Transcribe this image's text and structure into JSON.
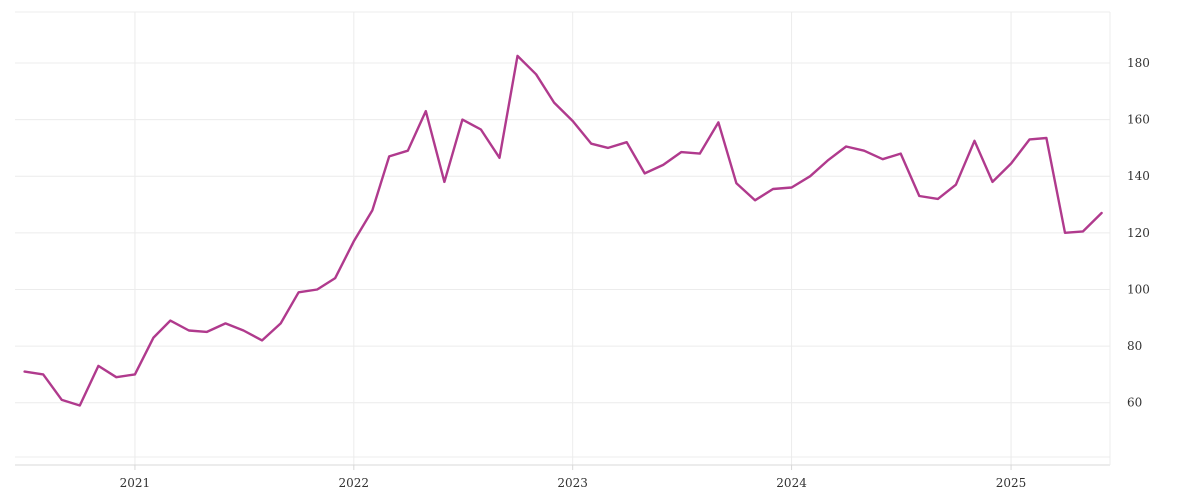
{
  "colors": {
    "series": "#b03a8d",
    "grid": "#ececec",
    "text": "#333333"
  },
  "chart_data": {
    "type": "line",
    "title": "",
    "xlabel": "",
    "ylabel": "",
    "grid": true,
    "y_axis_side": "right",
    "ylim": [
      38,
      198
    ],
    "xlim": [
      "2020-06-15",
      "2025-06-15"
    ],
    "y_ticks": [
      60,
      80,
      100,
      120,
      140,
      160,
      180
    ],
    "x_ticks": [
      "2021-01-01",
      "2022-01-01",
      "2023-01-01",
      "2024-01-01",
      "2025-01-01"
    ],
    "x_tick_labels": [
      "2021",
      "2022",
      "2023",
      "2024",
      "2025"
    ],
    "series": [
      {
        "x": [
          "2020-07-01",
          "2020-08-01",
          "2020-09-01",
          "2020-10-01",
          "2020-11-01",
          "2020-12-01",
          "2021-01-01",
          "2021-02-01",
          "2021-03-01",
          "2021-04-01",
          "2021-05-01",
          "2021-06-01",
          "2021-07-01",
          "2021-08-01",
          "2021-09-01",
          "2021-10-01",
          "2021-11-01",
          "2021-12-01",
          "2022-01-01",
          "2022-02-01",
          "2022-03-01",
          "2022-04-01",
          "2022-05-01",
          "2022-06-01",
          "2022-07-01",
          "2022-08-01",
          "2022-09-01",
          "2022-10-01",
          "2022-11-01",
          "2022-12-01",
          "2023-01-01",
          "2023-02-01",
          "2023-03-01",
          "2023-04-01",
          "2023-05-01",
          "2023-06-01",
          "2023-07-01",
          "2023-08-01",
          "2023-09-01",
          "2023-10-01",
          "2023-11-01",
          "2023-12-01",
          "2024-01-01",
          "2024-02-01",
          "2024-03-01",
          "2024-04-01",
          "2024-05-01",
          "2024-06-01",
          "2024-07-01",
          "2024-08-01",
          "2024-09-01",
          "2024-10-01",
          "2024-11-01",
          "2024-12-01",
          "2025-01-01",
          "2025-02-01",
          "2025-03-01",
          "2025-04-01",
          "2025-05-01",
          "2025-06-01"
        ],
        "values": [
          71,
          70,
          61,
          59,
          73,
          69,
          70,
          83,
          89,
          85.5,
          85,
          88,
          85.5,
          82,
          88,
          99,
          100,
          104,
          117,
          128,
          147,
          149,
          163,
          138,
          160,
          156.5,
          146.5,
          182.5,
          176,
          166,
          159.5,
          151.5,
          150,
          152,
          141,
          144,
          148.5,
          148,
          159,
          137.5,
          131.5,
          135.5,
          136,
          140,
          145.5,
          150.5,
          149,
          146,
          148,
          133,
          132,
          137,
          152.5,
          138,
          144.5,
          153,
          153.5,
          120,
          120.5,
          127
        ]
      }
    ]
  }
}
